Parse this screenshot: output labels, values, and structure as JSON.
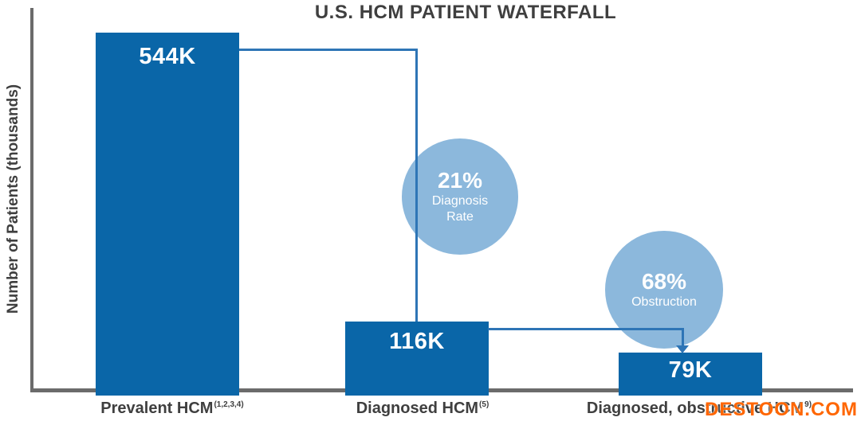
{
  "chart_data": {
    "type": "bar",
    "subtype": "waterfall",
    "title": "U.S. HCM PATIENT WATERFALL",
    "ylabel": "Number of Patients (thousands)",
    "xlabel": "",
    "categories": [
      {
        "label": "Prevalent HCM",
        "sup": "(1,2,3,4)"
      },
      {
        "label": "Diagnosed HCM",
        "sup": "(5)"
      },
      {
        "label": "Diagnosed, obstructive HCM",
        "sup": "9)"
      }
    ],
    "values": [
      544,
      116,
      79
    ],
    "value_labels": [
      "544K",
      "116K",
      "79K"
    ],
    "value_unit": "thousands of patients",
    "ylim": [
      0,
      560
    ],
    "grid": false,
    "legend": false,
    "annotations": [
      {
        "value": "21%",
        "lines": [
          "Diagnosis",
          "Rate"
        ]
      },
      {
        "value": "68%",
        "lines": [
          "Obstruction"
        ]
      }
    ]
  },
  "watermark": {
    "text": "DESTOON.COM",
    "color": "#ff6600"
  },
  "colors": {
    "bar": "#0a66a8",
    "connector_line": "#2e75b6",
    "annotation_circle": "#8cb8dc",
    "axis": "#6b6b6b",
    "heading_text": "#3f3f3f",
    "bar_value_text": "#ffffff",
    "circle_text": "#ffffff"
  }
}
